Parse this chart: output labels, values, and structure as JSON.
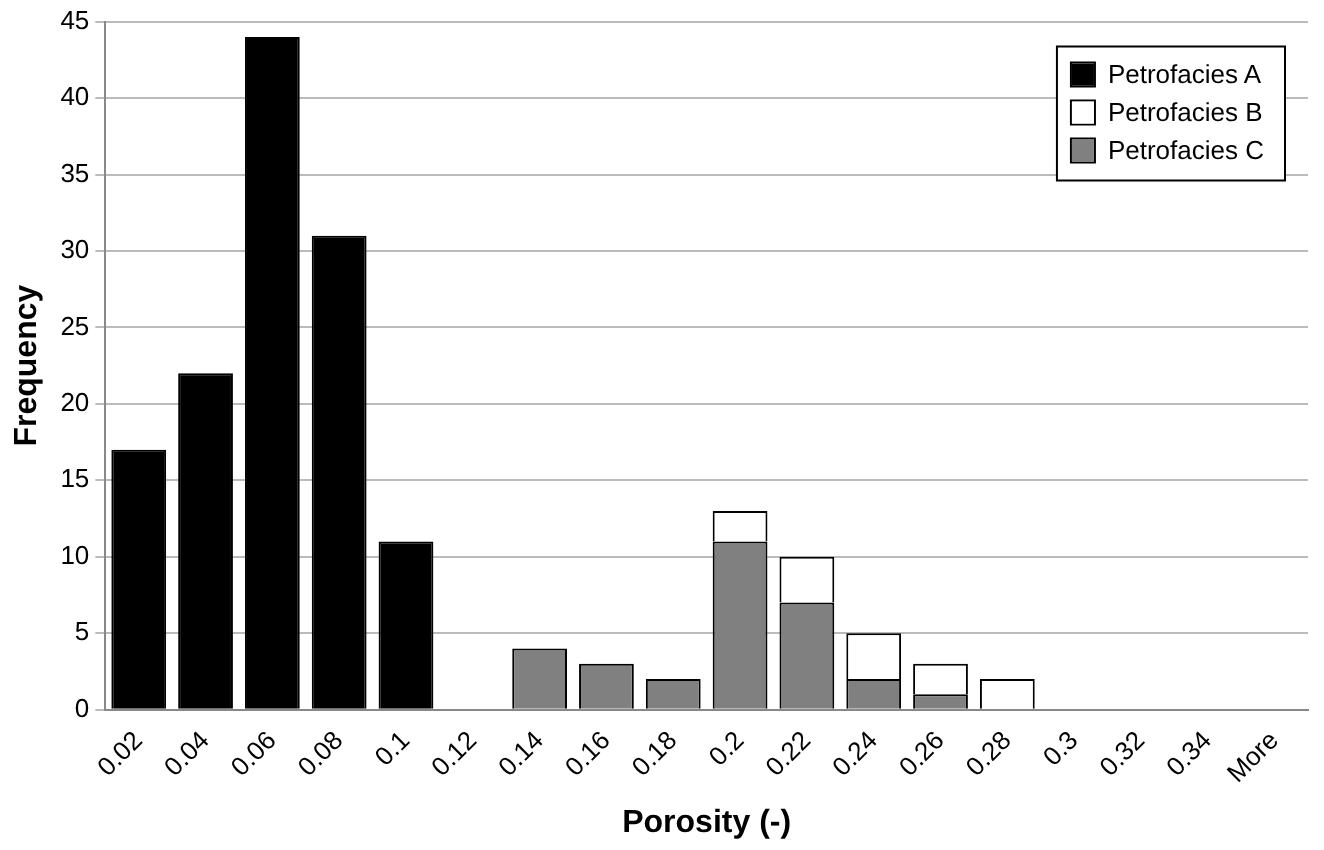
{
  "chart_data": {
    "type": "bar",
    "stacked": true,
    "xlabel": "Porosity (-)",
    "ylabel": "Frequency",
    "categories": [
      "0.02",
      "0.04",
      "0.06",
      "0.08",
      "0.1",
      "0.12",
      "0.14",
      "0.16",
      "0.18",
      "0.2",
      "0.22",
      "0.24",
      "0.26",
      "0.28",
      "0.3",
      "0.32",
      "0.34",
      "More"
    ],
    "series": [
      {
        "name": "Petrofacies C",
        "color": "#808080",
        "values": [
          0,
          0,
          0,
          0,
          0,
          0,
          4,
          3,
          2,
          11,
          7,
          2,
          1,
          0,
          0,
          0,
          0,
          0
        ]
      },
      {
        "name": "Petrofacies B",
        "color": "#ffffff",
        "values": [
          0,
          0,
          0,
          0,
          0,
          0,
          0,
          0,
          0,
          2,
          3,
          3,
          2,
          2,
          0,
          0,
          0,
          0
        ]
      },
      {
        "name": "Petrofacies A",
        "color": "#000000",
        "values": [
          17,
          22,
          44,
          31,
          11,
          0,
          0,
          0,
          0,
          0,
          0,
          0,
          0,
          0,
          0,
          0,
          0,
          0
        ]
      }
    ],
    "ylim": [
      0,
      45
    ],
    "yticks": [
      0,
      5,
      10,
      15,
      20,
      25,
      30,
      35,
      40,
      45
    ],
    "grid": "y",
    "legend": "top right"
  }
}
